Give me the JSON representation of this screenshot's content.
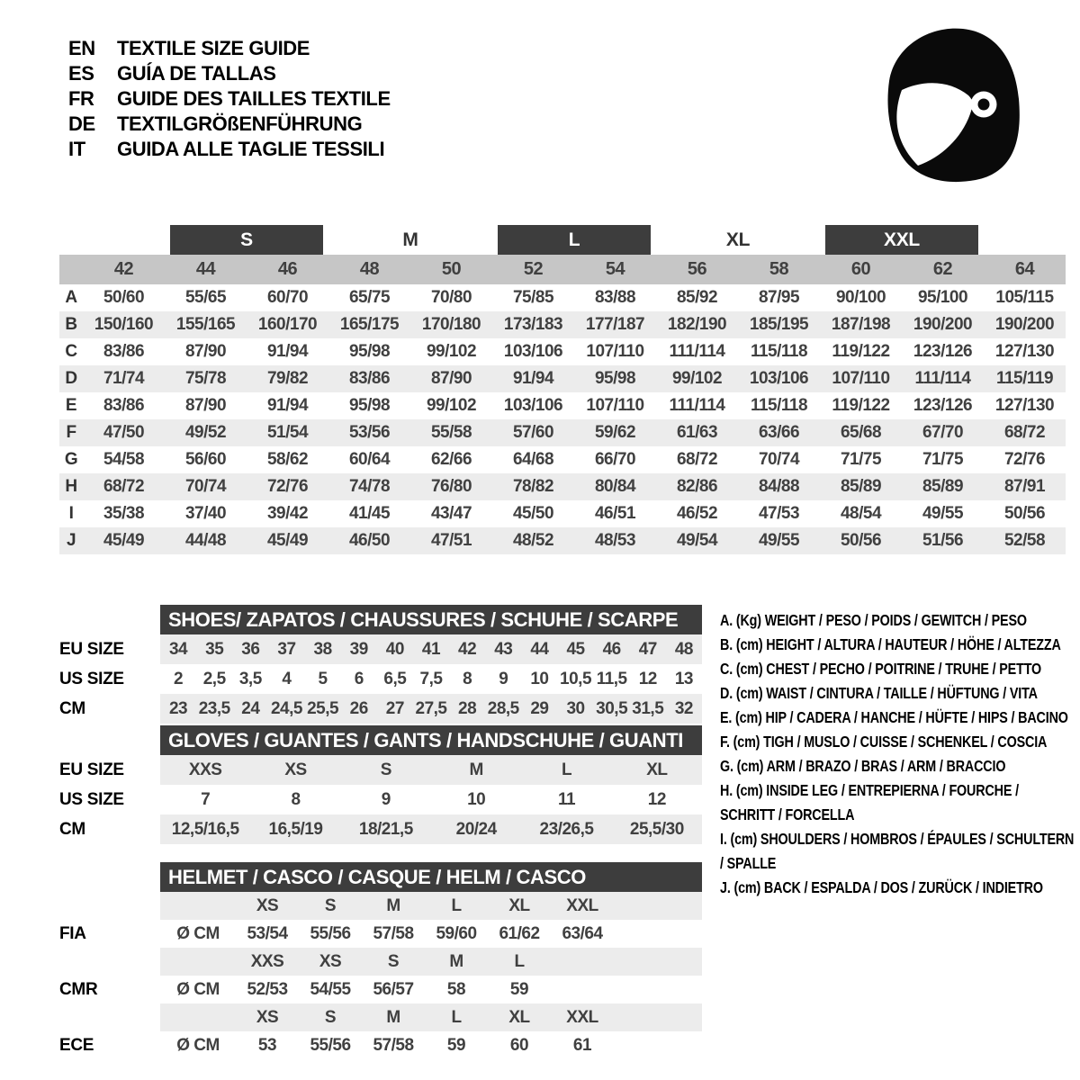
{
  "colors": {
    "bar_dark": "#3d3d3d",
    "band_gray": "#c6c6c6",
    "row_gray": "#ececec",
    "text_dark": "#404040",
    "helmet_black": "#0a0a0a"
  },
  "header": {
    "icon": "racing-helmet-icon",
    "languages": [
      {
        "code": "EN",
        "label": "TEXTILE SIZE GUIDE"
      },
      {
        "code": "ES",
        "label": "GUÍA DE TALLAS"
      },
      {
        "code": "FR",
        "label": "GUIDE DES TAILLES TEXTILE"
      },
      {
        "code": "DE",
        "label": "TEXTILGRÖßENFÜHRUNG"
      },
      {
        "code": "IT",
        "label": "GUIDA ALLE TAGLIE TESSILI"
      }
    ]
  },
  "textile_table": {
    "size_groups": [
      {
        "label": "S",
        "highlighted": true
      },
      {
        "label": "M",
        "highlighted": false
      },
      {
        "label": "L",
        "highlighted": true
      },
      {
        "label": "XL",
        "highlighted": false
      },
      {
        "label": "XXL",
        "highlighted": true
      }
    ],
    "columns": [
      "42",
      "44",
      "46",
      "48",
      "50",
      "52",
      "54",
      "56",
      "58",
      "60",
      "62",
      "64"
    ],
    "rows": [
      {
        "label": "A",
        "values": [
          "50/60",
          "55/65",
          "60/70",
          "65/75",
          "70/80",
          "75/85",
          "83/88",
          "85/92",
          "87/95",
          "90/100",
          "95/100",
          "105/115"
        ]
      },
      {
        "label": "B",
        "values": [
          "150/160",
          "155/165",
          "160/170",
          "165/175",
          "170/180",
          "173/183",
          "177/187",
          "182/190",
          "185/195",
          "187/198",
          "190/200",
          "190/200"
        ]
      },
      {
        "label": "C",
        "values": [
          "83/86",
          "87/90",
          "91/94",
          "95/98",
          "99/102",
          "103/106",
          "107/110",
          "111/114",
          "115/118",
          "119/122",
          "123/126",
          "127/130"
        ]
      },
      {
        "label": "D",
        "values": [
          "71/74",
          "75/78",
          "79/82",
          "83/86",
          "87/90",
          "91/94",
          "95/98",
          "99/102",
          "103/106",
          "107/110",
          "111/114",
          "115/119"
        ]
      },
      {
        "label": "E",
        "values": [
          "83/86",
          "87/90",
          "91/94",
          "95/98",
          "99/102",
          "103/106",
          "107/110",
          "111/114",
          "115/118",
          "119/122",
          "123/126",
          "127/130"
        ]
      },
      {
        "label": "F",
        "values": [
          "47/50",
          "49/52",
          "51/54",
          "53/56",
          "55/58",
          "57/60",
          "59/62",
          "61/63",
          "63/66",
          "65/68",
          "67/70",
          "68/72"
        ]
      },
      {
        "label": "G",
        "values": [
          "54/58",
          "56/60",
          "58/62",
          "60/64",
          "62/66",
          "64/68",
          "66/70",
          "68/72",
          "70/74",
          "71/75",
          "71/75",
          "72/76"
        ]
      },
      {
        "label": "H",
        "values": [
          "68/72",
          "70/74",
          "72/76",
          "74/78",
          "76/80",
          "78/82",
          "80/84",
          "82/86",
          "84/88",
          "85/89",
          "85/89",
          "87/91"
        ]
      },
      {
        "label": "I",
        "values": [
          "35/38",
          "37/40",
          "39/42",
          "41/45",
          "43/47",
          "45/50",
          "46/51",
          "46/52",
          "47/53",
          "48/54",
          "49/55",
          "50/56"
        ]
      },
      {
        "label": "J",
        "values": [
          "45/49",
          "44/48",
          "45/49",
          "46/50",
          "47/51",
          "48/52",
          "48/53",
          "49/54",
          "49/55",
          "50/56",
          "51/56",
          "52/58"
        ]
      }
    ]
  },
  "shoes_table": {
    "title": "SHOES/ ZAPATOS / CHAUSSURES / SCHUHE / SCARPE",
    "rows": [
      {
        "label": "EU SIZE",
        "shaded": true,
        "values": [
          "34",
          "35",
          "36",
          "37",
          "38",
          "39",
          "40",
          "41",
          "42",
          "43",
          "44",
          "45",
          "46",
          "47",
          "48"
        ]
      },
      {
        "label": "US SIZE",
        "shaded": false,
        "values": [
          "2",
          "2,5",
          "3,5",
          "4",
          "5",
          "6",
          "6,5",
          "7,5",
          "8",
          "9",
          "10",
          "10,5",
          "11,5",
          "12",
          "13"
        ]
      },
      {
        "label": "CM",
        "shaded": true,
        "values": [
          "23",
          "23,5",
          "24",
          "24,5",
          "25,5",
          "26",
          "27",
          "27,5",
          "28",
          "28,5",
          "29",
          "30",
          "30,5",
          "31,5",
          "32"
        ]
      }
    ]
  },
  "gloves_table": {
    "title": "GLOVES / GUANTES / GANTS / HANDSCHUHE / GUANTI",
    "rows": [
      {
        "label": "EU SIZE",
        "shaded": true,
        "values": [
          "XXS",
          "XS",
          "S",
          "M",
          "L",
          "XL"
        ]
      },
      {
        "label": "US SIZE",
        "shaded": false,
        "values": [
          "7",
          "8",
          "9",
          "10",
          "11",
          "12"
        ]
      },
      {
        "label": "CM",
        "shaded": true,
        "values": [
          "12,5/16,5",
          "16,5/19",
          "18/21,5",
          "20/24",
          "23/26,5",
          "25,5/30"
        ]
      }
    ]
  },
  "helmet_table": {
    "title": "HELMET / CASCO / CASQUE / HELM / CASCO",
    "diameter_label": "Ø CM",
    "standards": [
      {
        "label": "FIA",
        "sizes": [
          "XS",
          "S",
          "M",
          "L",
          "XL",
          "XXL"
        ],
        "values": [
          "53/54",
          "55/56",
          "57/58",
          "59/60",
          "61/62",
          "63/64"
        ]
      },
      {
        "label": "CMR",
        "sizes": [
          "XXS",
          "XS",
          "S",
          "M",
          "L",
          ""
        ],
        "values": [
          "52/53",
          "54/55",
          "56/57",
          "58",
          "59",
          ""
        ]
      },
      {
        "label": "ECE",
        "sizes": [
          "XS",
          "S",
          "M",
          "L",
          "XL",
          "XXL"
        ],
        "values": [
          "53",
          "55/56",
          "57/58",
          "59",
          "60",
          "61"
        ]
      }
    ]
  },
  "legend": {
    "items": [
      {
        "key": "A.",
        "unit": "(Kg)",
        "text": "WEIGHT / PESO / POIDS / GEWITCH / PESO"
      },
      {
        "key": "B.",
        "unit": "(cm)",
        "text": "HEIGHT / ALTURA / HAUTEUR / HÖHE / ALTEZZA"
      },
      {
        "key": "C.",
        "unit": "(cm)",
        "text": "CHEST / PECHO / POITRINE / TRUHE / PETTO"
      },
      {
        "key": "D.",
        "unit": "(cm)",
        "text": "WAIST / CINTURA / TAILLE / HÜFTUNG / VITA"
      },
      {
        "key": "E.",
        "unit": "(cm)",
        "text": "HIP / CADERA / HANCHE / HÜFTE / HIPS / BACINO"
      },
      {
        "key": "F.",
        "unit": "(cm)",
        "text": "TIGH / MUSLO / CUISSE / SCHENKEL / COSCIA"
      },
      {
        "key": "G.",
        "unit": "(cm)",
        "text": "ARM / BRAZO / BRAS / ARM / BRACCIO"
      },
      {
        "key": "H.",
        "unit": "(cm)",
        "text": "INSIDE LEG / ENTREPIERNA / FOURCHE / SCHRITT / FORCELLA"
      },
      {
        "key": "I.",
        "unit": "(cm)",
        "text": "SHOULDERS / HOMBROS / ÉPAULES / SCHULTERN / SPALLE"
      },
      {
        "key": "J.",
        "unit": "(cm)",
        "text": "BACK / ESPALDA / DOS / ZURÜCK / INDIETRO"
      }
    ]
  }
}
